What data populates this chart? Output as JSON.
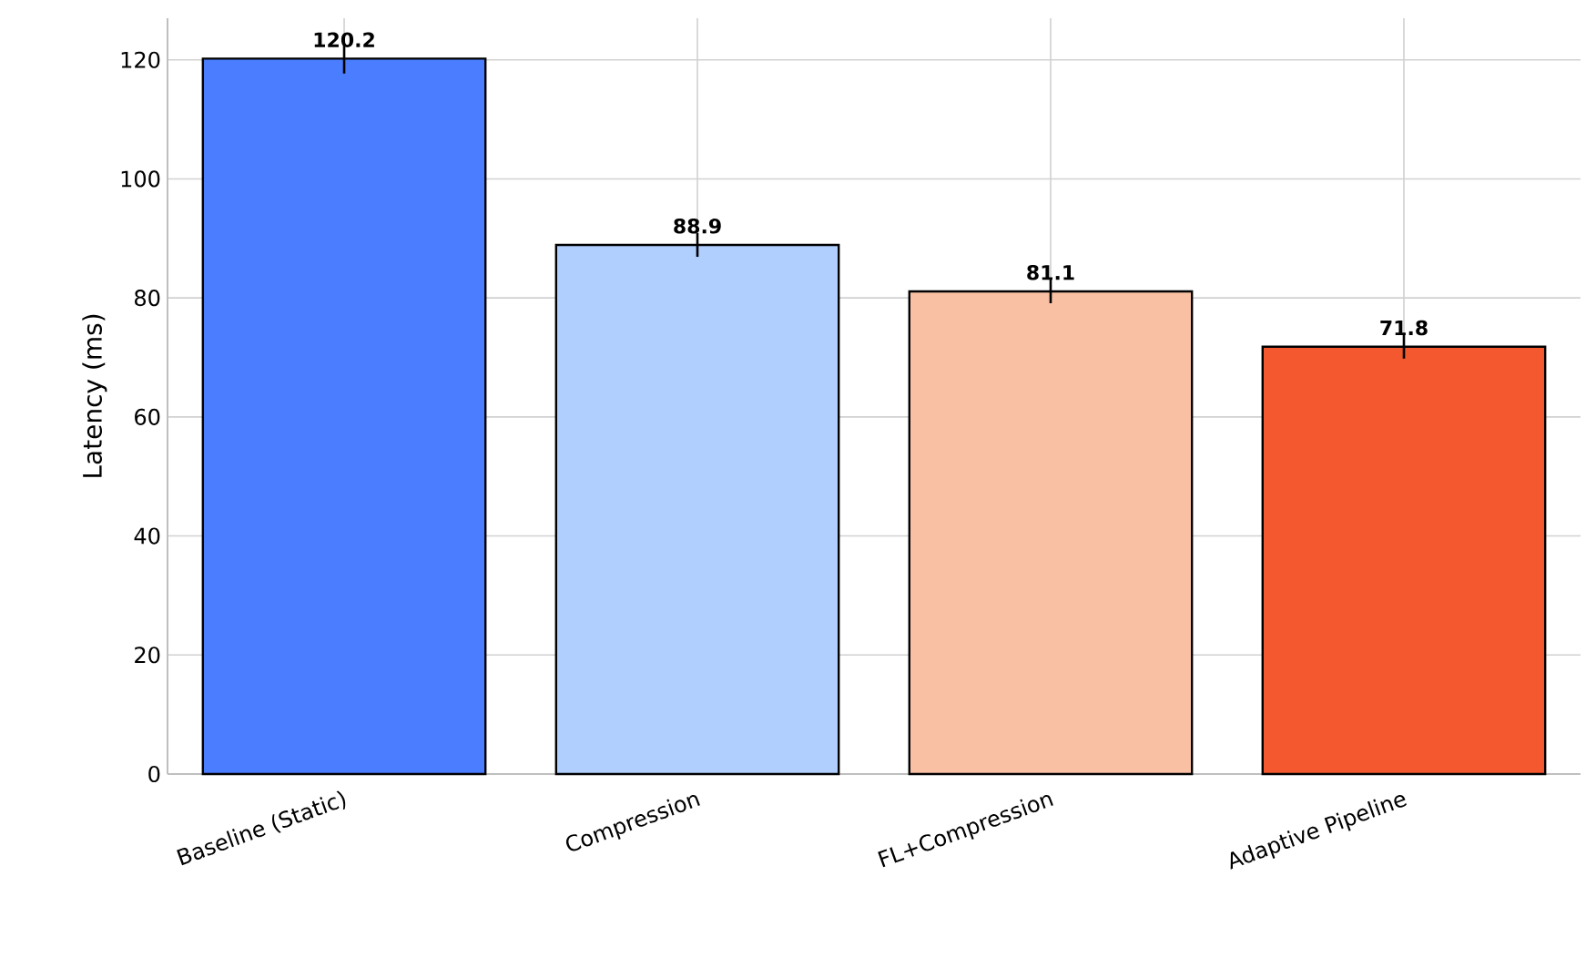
{
  "chart_data": {
    "type": "bar",
    "ylabel": "Latency (ms)",
    "categories": [
      "Baseline (Static)",
      "Compression",
      "FL+Compression",
      "Adaptive Pipeline"
    ],
    "values": [
      120.2,
      88.9,
      81.1,
      71.8
    ],
    "colors": [
      "#4a7dff",
      "#b0cffe",
      "#f9c0a3",
      "#f3582e"
    ],
    "errors": [
      2.5,
      2,
      2,
      2
    ],
    "ylim": [
      0,
      127
    ],
    "yticks": [
      0,
      20,
      40,
      60,
      80,
      100,
      120
    ],
    "grid": true,
    "data_labels": true
  }
}
